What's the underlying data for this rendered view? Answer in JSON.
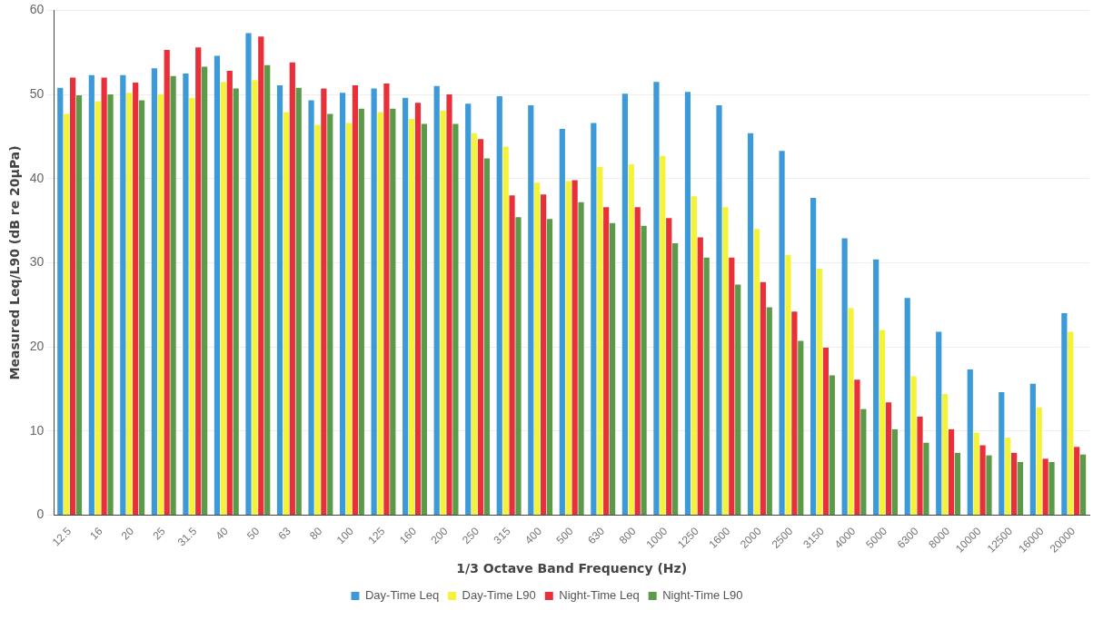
{
  "chart_data": {
    "type": "bar",
    "xlabel": "1/3 Octave Band Frequency (Hz)",
    "ylabel": "Measured Leq/L90 (dB re 20µPa)",
    "categories": [
      "12.5",
      "16",
      "20",
      "25",
      "31.5",
      "40",
      "50",
      "63",
      "80",
      "100",
      "125",
      "160",
      "200",
      "250",
      "315",
      "400",
      "500",
      "630",
      "800",
      "1000",
      "1250",
      "1600",
      "2000",
      "2500",
      "3150",
      "4000",
      "5000",
      "6300",
      "8000",
      "10000",
      "12500",
      "16000",
      "20000"
    ],
    "series": [
      {
        "name": "Day-Time Leq",
        "color": "#3d9ad8",
        "values": [
          50.8,
          52.3,
          52.3,
          53.1,
          52.5,
          54.6,
          57.3,
          51.1,
          49.3,
          50.2,
          50.7,
          49.6,
          51.0,
          48.9,
          49.8,
          48.7,
          45.9,
          46.6,
          50.1,
          51.5,
          50.3,
          48.7,
          45.4,
          43.3,
          37.7,
          32.9,
          30.4,
          25.8,
          21.8,
          17.3,
          14.6,
          15.6,
          24.0
        ]
      },
      {
        "name": "Day-Time L90",
        "color": "#f5f23a",
        "values": [
          47.7,
          49.2,
          50.2,
          50.0,
          49.6,
          51.5,
          51.7,
          47.9,
          46.4,
          46.6,
          47.9,
          47.1,
          48.1,
          45.4,
          43.8,
          39.5,
          39.7,
          41.4,
          41.7,
          42.7,
          37.9,
          36.6,
          34.0,
          30.9,
          29.3,
          24.6,
          22.0,
          16.5,
          14.4,
          9.8,
          9.2,
          12.8,
          21.8
        ]
      },
      {
        "name": "Night-Time Leq",
        "color": "#e8303a",
        "values": [
          52.0,
          52.0,
          51.4,
          55.3,
          55.6,
          52.8,
          56.9,
          53.8,
          50.7,
          51.1,
          51.3,
          49.0,
          50.0,
          44.7,
          38.0,
          38.1,
          39.8,
          36.6,
          36.6,
          35.3,
          33.0,
          30.6,
          27.7,
          24.2,
          19.9,
          16.1,
          13.4,
          11.7,
          10.2,
          8.3,
          7.4,
          6.7,
          8.1
        ]
      },
      {
        "name": "Night-Time L90",
        "color": "#5a9a48",
        "values": [
          49.9,
          50.0,
          49.3,
          52.2,
          53.3,
          50.7,
          53.5,
          50.8,
          47.7,
          48.3,
          48.3,
          46.5,
          46.5,
          42.4,
          35.4,
          35.2,
          37.2,
          34.7,
          34.4,
          32.3,
          30.6,
          27.4,
          24.7,
          20.7,
          16.6,
          12.6,
          10.2,
          8.6,
          7.4,
          7.1,
          6.3,
          6.3,
          7.2
        ]
      }
    ],
    "ylim": [
      0,
      60
    ],
    "yticks": [
      0,
      10,
      20,
      30,
      40,
      50,
      60
    ],
    "grid": "y",
    "legend": "bottom"
  }
}
